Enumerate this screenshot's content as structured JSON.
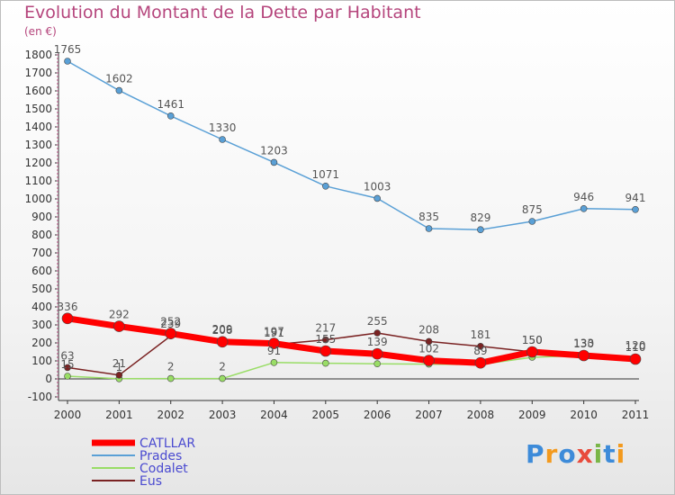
{
  "chart_title": "Evolution du Montant de la Dette par Habitant",
  "chart_unit": "(en €)",
  "logo_text": "Proxiti",
  "chart_data": {
    "type": "line",
    "title": "Evolution du Montant de la Dette par Habitant",
    "ylabel": "(en €)",
    "xlabel": "",
    "x": [
      "2000",
      "2001",
      "2002",
      "2003",
      "2004",
      "2005",
      "2006",
      "2007",
      "2008",
      "2009",
      "2010",
      "2011"
    ],
    "ylim": [
      -100,
      1800
    ],
    "yticks": [
      -100,
      0,
      100,
      200,
      300,
      400,
      500,
      600,
      700,
      800,
      900,
      1000,
      1100,
      1200,
      1300,
      1400,
      1500,
      1600,
      1700,
      1800
    ],
    "grid": false,
    "legend_position": "bottom-left",
    "series": [
      {
        "name": "Prades",
        "color": "#5aa0d6",
        "values": [
          1765,
          1602,
          1461,
          1330,
          1203,
          1071,
          1003,
          835,
          829,
          875,
          946,
          941
        ],
        "labels": [
          "1765",
          "1602",
          "1461",
          "1330",
          "1203",
          "1071",
          "1003",
          "835",
          "829",
          "875",
          "946",
          "941"
        ]
      },
      {
        "name": "Codalet",
        "color": "#99dd66",
        "values": [
          15,
          1,
          2,
          2,
          91,
          87,
          84,
          82,
          80,
          120,
          130,
          120
        ],
        "labels": [
          "15",
          "1",
          "2",
          "2",
          "91",
          "",
          "",
          "",
          "",
          "",
          "",
          ""
        ]
      },
      {
        "name": "Eus",
        "color": "#7a2222",
        "values": [
          63,
          21,
          239,
          209,
          191,
          217,
          255,
          208,
          181,
          150,
          133,
          120
        ],
        "labels": [
          "63",
          "21",
          "239",
          "209",
          "191",
          "217",
          "255",
          "208",
          "181",
          "150",
          "133",
          "120"
        ]
      },
      {
        "name": "CATLLAR",
        "color": "#ff0000",
        "values": [
          336,
          292,
          252,
          206,
          197,
          155,
          139,
          102,
          89,
          150,
          130,
          110
        ],
        "labels": [
          "336",
          "292",
          "252",
          "206",
          "197",
          "155",
          "139",
          "102",
          "89",
          "150",
          "130",
          "110"
        ]
      }
    ]
  },
  "colors": {
    "title": "#b5457c",
    "axis": "#333333",
    "label": "#555555",
    "legend_text": "#4a4ad0"
  }
}
